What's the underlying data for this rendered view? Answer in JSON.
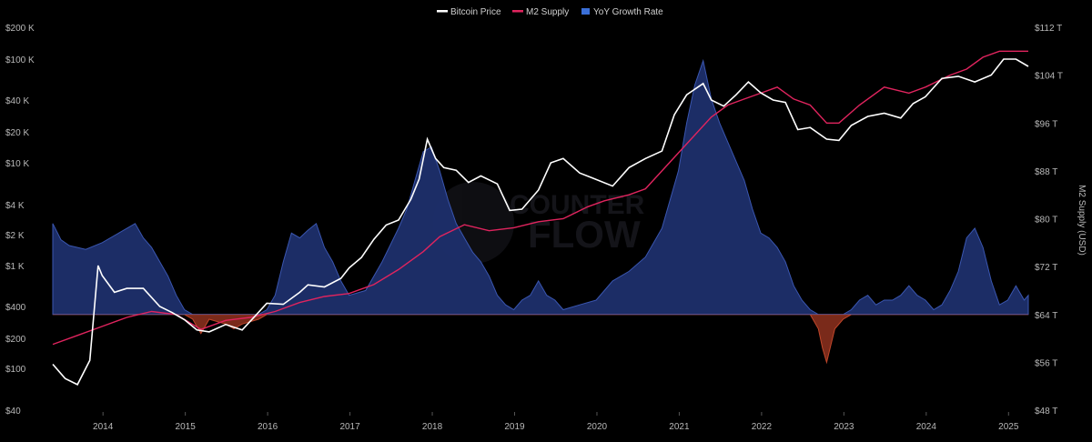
{
  "legend": [
    {
      "label": "Bitcoin Price",
      "color": "#ffffff"
    },
    {
      "label": "M2 Supply",
      "color": "#e0245e"
    },
    {
      "label": "YoY Growth Rate",
      "color": "#3a6fd8"
    }
  ],
  "watermark": {
    "line1": "COUNTER",
    "line2": "FLOW"
  },
  "left_axis": {
    "scale": "log",
    "ticks": [
      "$200 K",
      "$100 K",
      "$40 K",
      "$20 K",
      "$10 K",
      "$4 K",
      "$2 K",
      "$1 K",
      "$400",
      "$200",
      "$100",
      "$40"
    ],
    "tick_values": [
      200000,
      100000,
      40000,
      20000,
      10000,
      4000,
      2000,
      1000,
      400,
      200,
      100,
      40
    ]
  },
  "right_axis": {
    "title": "M2 Supply (USD)",
    "ticks": [
      "$112 T",
      "$104 T",
      "$96 T",
      "$88 T",
      "$80 T",
      "$72 T",
      "$64 T",
      "$56 T",
      "$48 T"
    ],
    "tick_values": [
      112,
      104,
      96,
      88,
      80,
      72,
      64,
      56,
      48
    ]
  },
  "x_axis": {
    "ticks": [
      "2014",
      "2015",
      "2016",
      "2017",
      "2018",
      "2019",
      "2020",
      "2021",
      "2022",
      "2023",
      "2024",
      "2025"
    ]
  },
  "colors": {
    "positive_fill": "#1e2f6b",
    "positive_stroke": "#3a56b0",
    "negative_fill": "#7a2a1a",
    "negative_stroke": "#c0462a"
  },
  "chart_data": {
    "type": "line",
    "x_unit": "year",
    "grid": false,
    "legend_position": "top-center",
    "series": [
      {
        "name": "Bitcoin Price",
        "axis": "left-log",
        "x": [
          2013.4,
          2013.55,
          2013.7,
          2013.85,
          2013.95,
          2014.0,
          2014.15,
          2014.3,
          2014.5,
          2014.7,
          2014.85,
          2015.0,
          2015.15,
          2015.3,
          2015.5,
          2015.7,
          2015.85,
          2016.0,
          2016.2,
          2016.4,
          2016.5,
          2016.7,
          2016.9,
          2017.0,
          2017.15,
          2017.3,
          2017.45,
          2017.6,
          2017.75,
          2017.85,
          2017.95,
          2018.05,
          2018.15,
          2018.3,
          2018.45,
          2018.6,
          2018.8,
          2018.95,
          2019.1,
          2019.3,
          2019.45,
          2019.6,
          2019.8,
          2019.95,
          2020.2,
          2020.4,
          2020.6,
          2020.8,
          2020.95,
          2021.1,
          2021.3,
          2021.4,
          2021.55,
          2021.7,
          2021.85,
          2022.0,
          2022.15,
          2022.3,
          2022.45,
          2022.6,
          2022.8,
          2022.95,
          2023.1,
          2023.3,
          2023.5,
          2023.7,
          2023.85,
          2024.0,
          2024.2,
          2024.4,
          2024.6,
          2024.8,
          2024.95,
          2025.1,
          2025.25
        ],
        "values": [
          110,
          80,
          70,
          120,
          1000,
          800,
          550,
          600,
          600,
          400,
          350,
          300,
          240,
          230,
          270,
          240,
          320,
          430,
          420,
          550,
          650,
          620,
          750,
          950,
          1200,
          1800,
          2500,
          2800,
          4500,
          7000,
          17000,
          11000,
          9000,
          8500,
          6500,
          7500,
          6300,
          3500,
          3600,
          5500,
          10000,
          11000,
          8000,
          7200,
          6000,
          9000,
          11000,
          13000,
          29000,
          45000,
          58000,
          40000,
          35000,
          45000,
          60000,
          47000,
          40000,
          38000,
          21000,
          22000,
          17000,
          16500,
          23000,
          28000,
          30000,
          27000,
          37000,
          43000,
          65000,
          68000,
          60000,
          70000,
          100000,
          100000,
          85000
        ]
      },
      {
        "name": "M2 Supply",
        "axis": "right",
        "unit": "T USD",
        "x": [
          2013.4,
          2013.7,
          2014.0,
          2014.3,
          2014.6,
          2014.9,
          2015.2,
          2015.5,
          2015.8,
          2016.1,
          2016.4,
          2016.7,
          2017.0,
          2017.3,
          2017.6,
          2017.9,
          2018.1,
          2018.4,
          2018.7,
          2019.0,
          2019.3,
          2019.6,
          2019.9,
          2020.1,
          2020.4,
          2020.6,
          2020.8,
          2021.0,
          2021.2,
          2021.4,
          2021.6,
          2021.8,
          2022.0,
          2022.2,
          2022.4,
          2022.6,
          2022.8,
          2022.95,
          2023.2,
          2023.5,
          2023.8,
          2024.0,
          2024.3,
          2024.5,
          2024.7,
          2024.9,
          2025.1,
          2025.25
        ],
        "values": [
          59,
          60.5,
          62,
          63.5,
          64.5,
          64,
          61.5,
          63,
          63.5,
          64.5,
          66,
          67,
          67.5,
          69,
          71.5,
          74.5,
          77,
          79,
          78,
          78.5,
          79.5,
          80,
          82,
          83,
          84,
          85,
          88,
          91,
          94,
          97,
          99,
          100,
          101,
          102,
          100,
          99,
          96,
          96,
          99,
          102,
          101,
          102,
          104,
          105,
          107,
          108,
          108,
          108
        ]
      },
      {
        "name": "YoY Growth Rate",
        "type": "area",
        "unit": "%",
        "zero_level_on_right_axis": 64,
        "x": [
          2013.4,
          2013.5,
          2013.6,
          2013.8,
          2014.0,
          2014.2,
          2014.4,
          2014.5,
          2014.6,
          2014.8,
          2014.9,
          2015.0,
          2015.1,
          2015.2,
          2015.3,
          2015.5,
          2015.6,
          2015.7,
          2015.9,
          2016.0,
          2016.1,
          2016.2,
          2016.3,
          2016.4,
          2016.5,
          2016.6,
          2016.7,
          2016.8,
          2016.9,
          2017.0,
          2017.2,
          2017.4,
          2017.6,
          2017.7,
          2017.8,
          2017.9,
          2018.0,
          2018.1,
          2018.2,
          2018.3,
          2018.4,
          2018.5,
          2018.6,
          2018.7,
          2018.8,
          2018.9,
          2019.0,
          2019.1,
          2019.2,
          2019.3,
          2019.4,
          2019.5,
          2019.6,
          2019.8,
          2020.0,
          2020.2,
          2020.4,
          2020.6,
          2020.8,
          2021.0,
          2021.1,
          2021.2,
          2021.3,
          2021.4,
          2021.5,
          2021.6,
          2021.8,
          2021.9,
          2022.0,
          2022.1,
          2022.2,
          2022.3,
          2022.4,
          2022.5,
          2022.6,
          2022.7,
          2022.75,
          2022.8,
          2022.9,
          2023.0,
          2023.1,
          2023.2,
          2023.3,
          2023.4,
          2023.5,
          2023.6,
          2023.7,
          2023.8,
          2023.9,
          2024.0,
          2024.1,
          2024.2,
          2024.3,
          2024.4,
          2024.5,
          2024.6,
          2024.7,
          2024.8,
          2024.9,
          2025.0,
          2025.1,
          2025.2,
          2025.25
        ],
        "values": [
          95,
          78,
          72,
          68,
          75,
          85,
          95,
          80,
          70,
          40,
          20,
          5,
          -5,
          -20,
          -5,
          -10,
          -15,
          -10,
          -5,
          5,
          20,
          55,
          85,
          80,
          88,
          95,
          70,
          55,
          35,
          20,
          25,
          55,
          90,
          110,
          140,
          170,
          175,
          150,
          120,
          95,
          80,
          65,
          55,
          40,
          20,
          10,
          5,
          15,
          20,
          35,
          20,
          15,
          5,
          10,
          15,
          35,
          45,
          60,
          90,
          150,
          200,
          240,
          265,
          225,
          200,
          180,
          140,
          110,
          85,
          80,
          70,
          55,
          30,
          15,
          5,
          -15,
          -35,
          -50,
          -15,
          -5,
          5,
          15,
          20,
          10,
          15,
          15,
          20,
          30,
          20,
          15,
          5,
          10,
          25,
          45,
          80,
          90,
          70,
          35,
          10,
          15,
          30,
          15,
          20
        ]
      }
    ]
  }
}
